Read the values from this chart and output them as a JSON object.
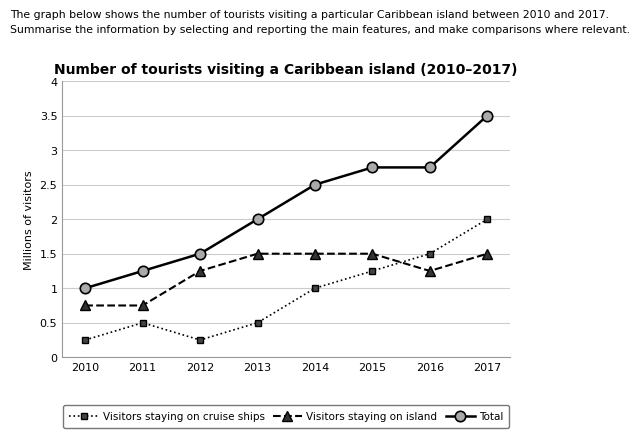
{
  "title": "Number of tourists visiting a Caribbean island (2010–2017)",
  "header_line1": "The graph below shows the number of tourists visiting a particular Caribbean island between 2010 and 2017.",
  "header_line2": "Summarise the information by selecting and reporting the main features, and make comparisons where relevant.",
  "years": [
    2010,
    2011,
    2012,
    2013,
    2014,
    2015,
    2016,
    2017
  ],
  "cruise_ships": [
    0.25,
    0.5,
    0.25,
    0.5,
    1.0,
    1.25,
    1.5,
    2.0
  ],
  "on_island": [
    0.75,
    0.75,
    1.25,
    1.5,
    1.5,
    1.5,
    1.25,
    1.5
  ],
  "total": [
    1.0,
    1.25,
    1.5,
    2.0,
    2.5,
    2.75,
    2.75,
    3.5
  ],
  "ylabel": "Millions of visitors",
  "ylim": [
    0,
    4
  ],
  "yticks": [
    0,
    0.5,
    1.0,
    1.5,
    2.0,
    2.5,
    3.0,
    3.5,
    4.0
  ],
  "legend_cruise": "Visitors staying on cruise ships",
  "legend_island": "Visitors staying on island",
  "legend_total": "Total",
  "line_color": "#000000",
  "marker_face_cruise": "#444444",
  "marker_face_island": "#333333",
  "marker_face_total": "#aaaaaa",
  "grid_color": "#cccccc",
  "background_color": "#ffffff",
  "title_fontsize": 10,
  "header_fontsize": 7.8,
  "label_fontsize": 8,
  "tick_fontsize": 8,
  "legend_fontsize": 7.5
}
